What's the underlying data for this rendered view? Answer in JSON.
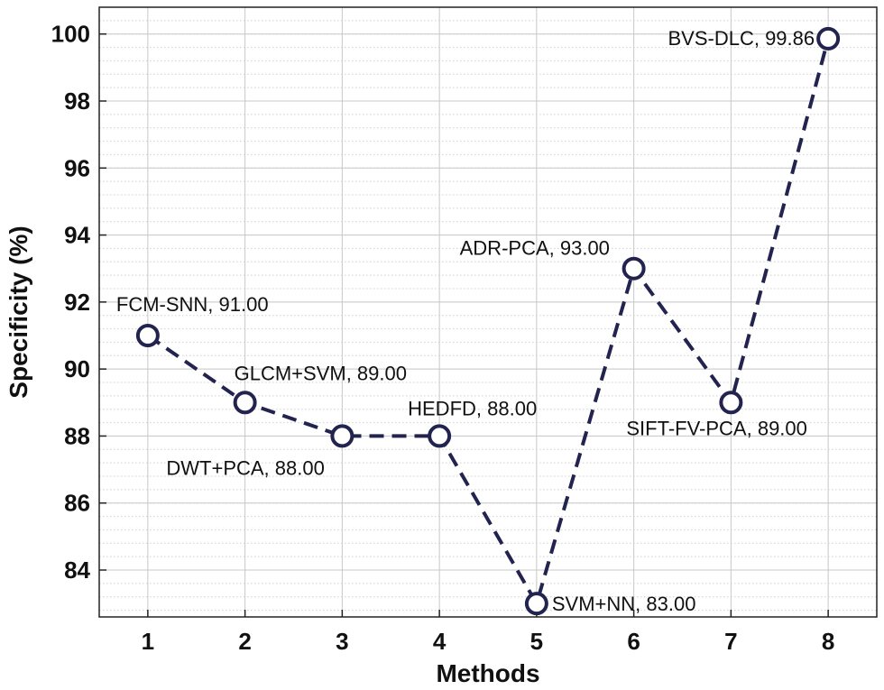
{
  "chart_data": {
    "type": "line",
    "title": "",
    "xlabel": "Methods",
    "ylabel": "Specificity (%)",
    "x": [
      1,
      2,
      3,
      4,
      5,
      6,
      7,
      8
    ],
    "xticks": [
      "1",
      "2",
      "3",
      "4",
      "5",
      "6",
      "7",
      "8"
    ],
    "xlim": [
      0.5,
      8.5
    ],
    "ylim": [
      82.6,
      100.8
    ],
    "yticks": [
      "84",
      "86",
      "88",
      "90",
      "92",
      "94",
      "96",
      "98",
      "100"
    ],
    "grid": true,
    "series": [
      {
        "values": [
          91.0,
          89.0,
          88.0,
          88.0,
          83.0,
          93.0,
          89.0,
          99.86
        ],
        "labels": [
          "FCM-SNN, 91.00",
          "GLCM+SVM, 89.00",
          "DWT+PCA, 88.00",
          "HEDFD, 88.00",
          "SVM+NN, 83.00",
          "ADR-PCA, 93.00",
          "SIFT-FV-PCA, 89.00",
          "BVS-DLC, 99.86"
        ],
        "line_style": "dashed",
        "marker": "open-circle",
        "color": "#23234f"
      }
    ]
  }
}
